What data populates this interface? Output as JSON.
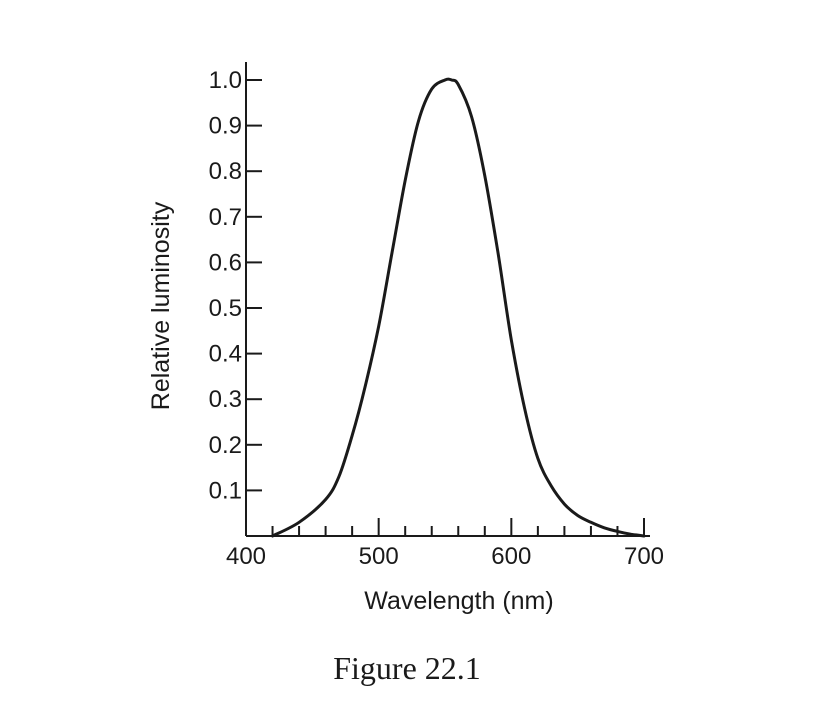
{
  "chart_data": {
    "type": "line",
    "title": "",
    "xlabel": "Wavelength  (nm)",
    "ylabel": "Relative luminosity",
    "xlim": [
      400,
      700
    ],
    "ylim": [
      0,
      1.0
    ],
    "x_ticks": [
      400,
      500,
      600,
      700
    ],
    "x_minor_step": 20,
    "y_ticks": [
      0.1,
      0.2,
      0.3,
      0.4,
      0.5,
      0.6,
      0.7,
      0.8,
      0.9,
      1.0
    ],
    "y_tick_labels": [
      "0.1",
      "0.2",
      "0.3",
      "0.4",
      "0.5",
      "0.6",
      "0.7",
      "0.8",
      "0.9",
      "1.0"
    ],
    "x_tick_labels": [
      "400",
      "500",
      "600",
      "700"
    ],
    "grid": false,
    "series": [
      {
        "x": [
          420,
          440,
          460,
          470,
          480,
          490,
          500,
          510,
          520,
          530,
          540,
          550,
          555,
          560,
          570,
          580,
          590,
          600,
          610,
          620,
          630,
          640,
          650,
          660,
          670,
          680,
          690,
          700
        ],
        "y": [
          0.0,
          0.03,
          0.08,
          0.13,
          0.22,
          0.33,
          0.46,
          0.62,
          0.78,
          0.91,
          0.98,
          1.0,
          1.0,
          0.99,
          0.92,
          0.79,
          0.62,
          0.43,
          0.28,
          0.17,
          0.11,
          0.07,
          0.045,
          0.03,
          0.018,
          0.01,
          0.004,
          0.0
        ]
      }
    ]
  },
  "figure": {
    "caption": "Figure 22.1"
  }
}
